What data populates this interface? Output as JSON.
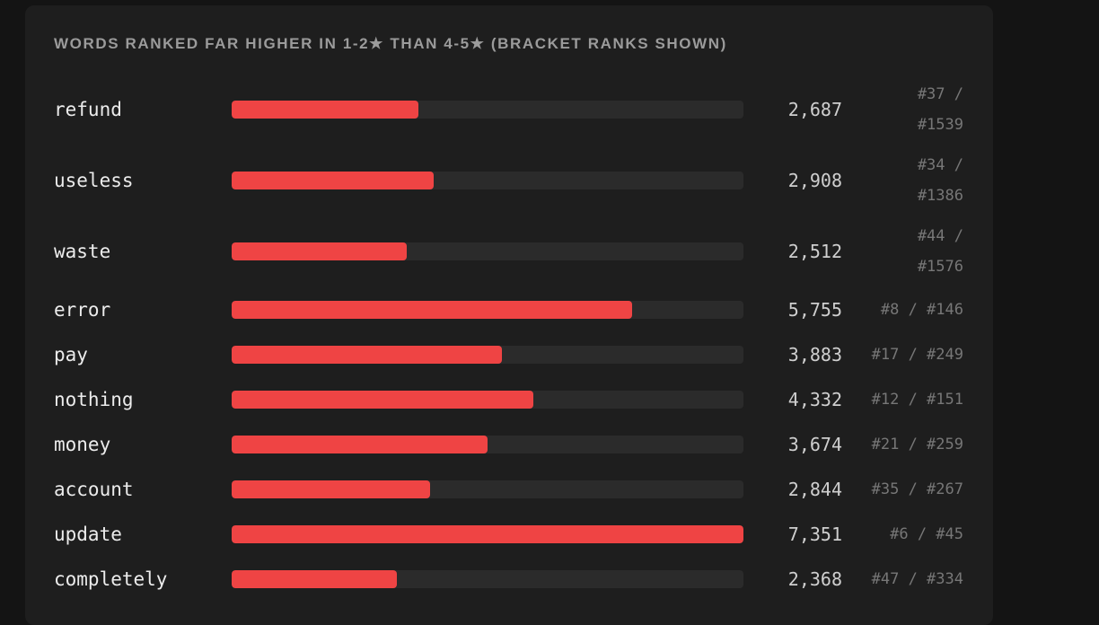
{
  "chart_data": {
    "type": "bar",
    "orientation": "horizontal",
    "title": "WORDS RANKED FAR HIGHER IN 1-2★ THAN 4-5★ (BRACKET RANKS SHOWN)",
    "categories": [
      "refund",
      "useless",
      "waste",
      "error",
      "pay",
      "nothing",
      "money",
      "account",
      "update",
      "completely"
    ],
    "values": [
      2687,
      2908,
      2512,
      5755,
      3883,
      4332,
      3674,
      2844,
      7351,
      2368
    ],
    "value_labels": [
      "2,687",
      "2,908",
      "2,512",
      "5,755",
      "3,883",
      "4,332",
      "3,674",
      "2,844",
      "7,351",
      "2,368"
    ],
    "ranks": [
      "#37 / #1539",
      "#34 / #1386",
      "#44 / #1576",
      "#8 / #146",
      "#17 / #249",
      "#12 / #151",
      "#21 / #259",
      "#35 / #267",
      "#6 / #45",
      "#47 / #334"
    ],
    "color": "#ef4444"
  }
}
